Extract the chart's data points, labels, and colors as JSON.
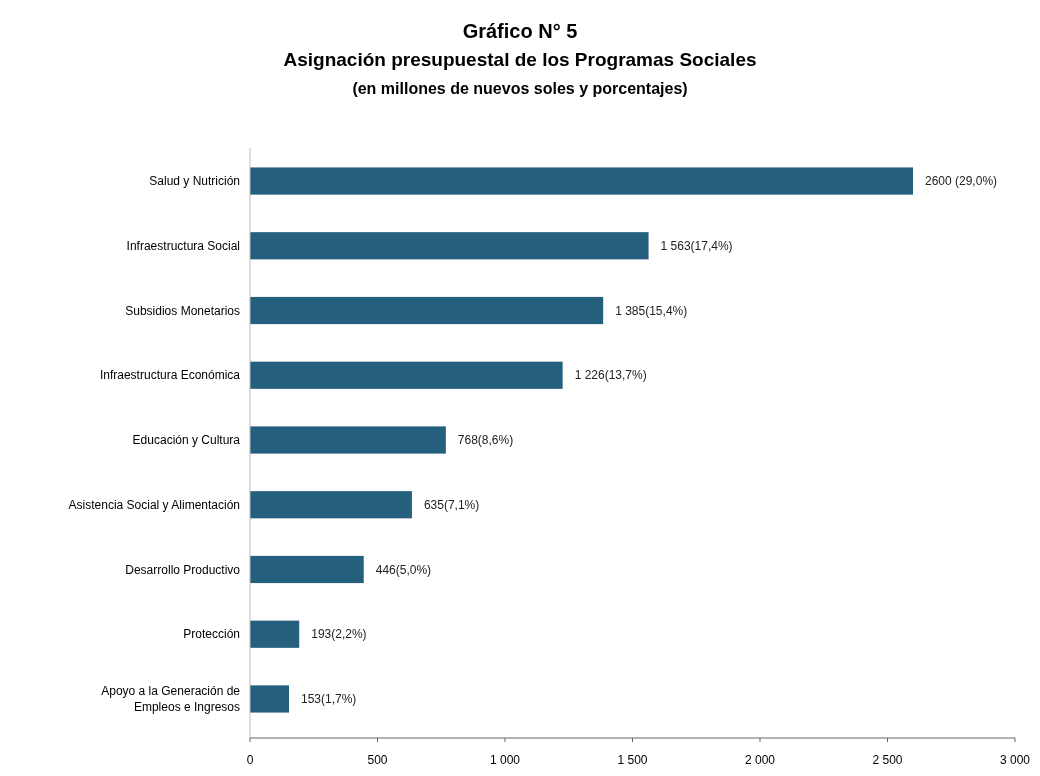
{
  "chart_data": {
    "type": "bar",
    "orientation": "horizontal",
    "title": "Gráfico N° 5",
    "subtitle": "Asignación presupuestal de los Programas Sociales\n(en millones de nuevos soles y porcentajes)",
    "categories": [
      "Salud y Nutrición",
      "Infraestructura Social",
      "Subsidios Monetarios",
      "Infraestructura Económica",
      "Educación y Cultura",
      "Asistencia Social y Alimentación",
      "Desarrollo Productivo",
      "Protección",
      "Apoyo a la Generación de\nEmpleos e Ingresos"
    ],
    "values": [
      2600,
      1563,
      1385,
      1226,
      768,
      635,
      446,
      193,
      153
    ],
    "value_labels": [
      "2600 (29,0%)",
      "1 563(17,4%)",
      "1 385(15,4%)",
      "1 226(13,7%)",
      "768(8,6%)",
      "635(7,1%)",
      "446(5,0%)",
      "193(2,2%)",
      "153(1,7%)"
    ],
    "color": "#245f7e",
    "xlim": [
      0,
      3000
    ],
    "xticks": [
      0,
      500,
      {
        "value": 1000,
        "label": "1 000"
      },
      {
        "value": 1500,
        "label": "1 500"
      },
      {
        "value": 2000,
        "label": "2 000"
      },
      {
        "value": 2500,
        "label": "2 500"
      },
      {
        "value": 3000,
        "label": "3 000"
      }
    ],
    "grid": false
  }
}
